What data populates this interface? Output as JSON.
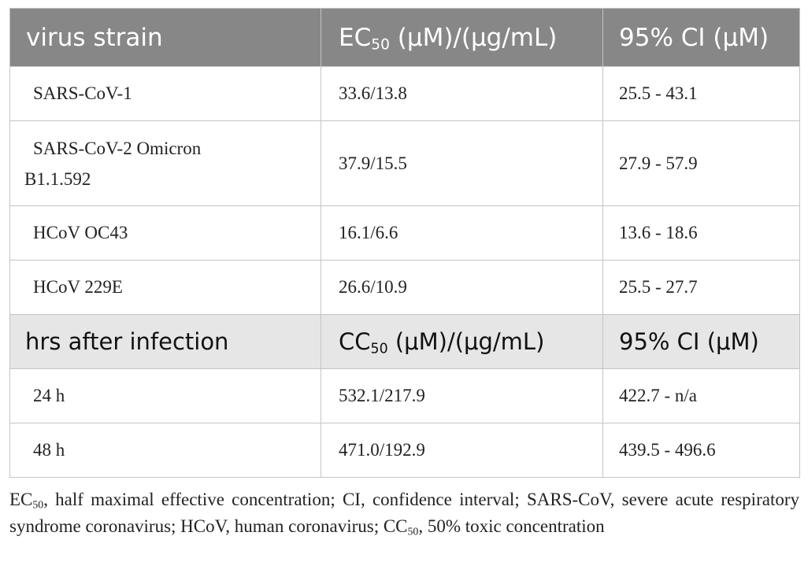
{
  "table": {
    "header": {
      "col1": "virus strain",
      "col2_prefix": "EC",
      "col2_sub": "50",
      "col2_suffix": " (μM)/(μg/mL)",
      "col3": "95% CI (μM)"
    },
    "virus_rows": [
      {
        "strain": "SARS-CoV-1",
        "ec50": "33.6/13.8",
        "ci": "25.5 - 43.1"
      },
      {
        "strain_line1": "SARS-CoV-2 Omicron",
        "strain_line2": "B1.1.592",
        "ec50": "37.9/15.5",
        "ci": "27.9 - 57.9"
      },
      {
        "strain": "HCoV OC43",
        "ec50": "16.1/6.6",
        "ci": "13.6 - 18.6"
      },
      {
        "strain": "HCoV 229E",
        "ec50": "26.6/10.9",
        "ci": "25.5 - 27.7"
      }
    ],
    "subheader": {
      "col1": "hrs after infection",
      "col2_prefix": "CC",
      "col2_sub": "50",
      "col2_suffix": " (μM)/(μg/mL)",
      "col3": "95% CI (μM)"
    },
    "time_rows": [
      {
        "time": "24 h",
        "cc50": "532.1/217.9",
        "ci": "422.7 - n/a"
      },
      {
        "time": "48 h",
        "cc50": "471.0/192.9",
        "ci": "439.5 - 496.6"
      }
    ]
  },
  "footnote": {
    "part1": "EC",
    "sub1": "50",
    "part2": ", half maximal effective concentration; CI, confidence interval; SARS-CoV, severe acute respiratory syndrome coronavirus; HCoV, human coronavirus; CC",
    "sub2": "50",
    "part3": ", 50% toxic concentration"
  },
  "colors": {
    "header_bg": "#878787",
    "subheader_bg": "#e6e6e6",
    "border": "#c4c4c4"
  }
}
